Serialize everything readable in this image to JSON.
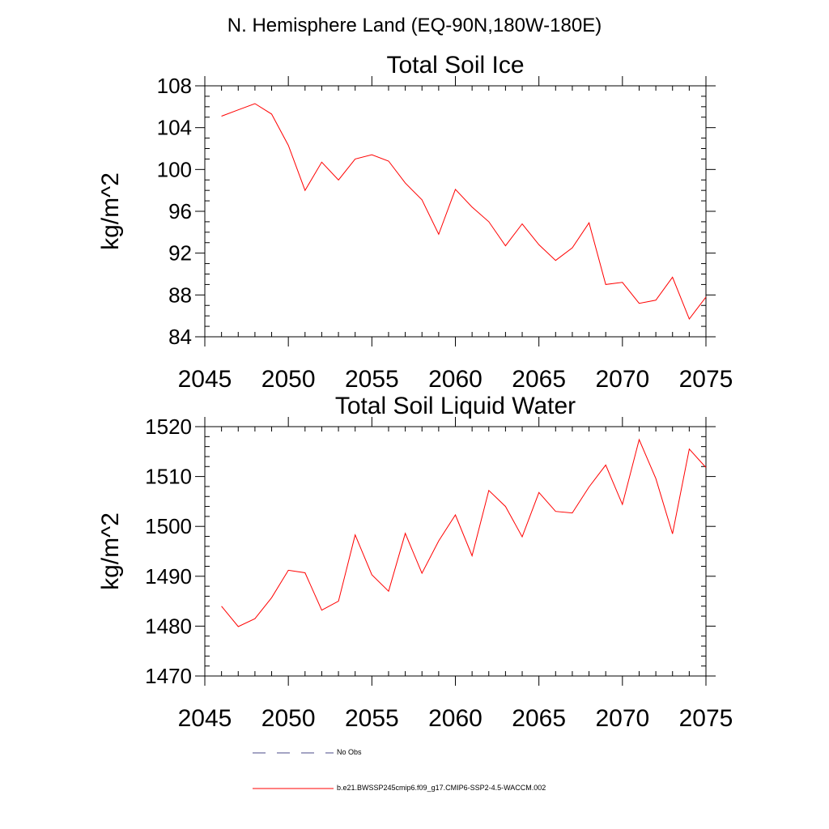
{
  "figure_title": "N. Hemisphere Land (EQ-90N,180W-180E)",
  "legend": [
    {
      "label": "No Obs",
      "color": "#4a4a8a",
      "style": "dashed"
    },
    {
      "label": "b.e21.BWSSP245cmip6.f09_g17.CMIP6-SSP2-4.5-WACCM.002",
      "color": "#ff0000",
      "style": "solid"
    }
  ],
  "chart_data": [
    {
      "type": "line",
      "title": "Total Soil Ice",
      "xlabel": "",
      "ylabel": "kg/m^2",
      "xlim": [
        2045,
        2075
      ],
      "ylim": [
        84,
        108
      ],
      "xticks": [
        2045,
        2050,
        2055,
        2060,
        2065,
        2070,
        2075
      ],
      "yticks": [
        84,
        88,
        92,
        96,
        100,
        104,
        108
      ],
      "y_minor_step": 1,
      "x_minor_step": 1,
      "grid": false,
      "series": [
        {
          "color": "#ff0000",
          "x": [
            2046,
            2047,
            2048,
            2049,
            2050,
            2051,
            2052,
            2053,
            2054,
            2055,
            2056,
            2057,
            2058,
            2059,
            2060,
            2061,
            2062,
            2063,
            2064,
            2065,
            2066,
            2067,
            2068,
            2069,
            2070,
            2071,
            2072,
            2073,
            2074,
            2075
          ],
          "y": [
            105.1,
            105.7,
            106.3,
            105.3,
            102.3,
            98.0,
            100.7,
            99.0,
            101.0,
            101.4,
            100.8,
            98.7,
            97.1,
            93.8,
            98.1,
            96.4,
            95.0,
            92.7,
            94.8,
            92.8,
            91.3,
            92.5,
            94.9,
            89.0,
            89.2,
            87.2,
            87.5,
            89.7,
            85.7,
            87.8
          ]
        }
      ]
    },
    {
      "type": "line",
      "title": "Total Soil Liquid Water",
      "xlabel": "",
      "ylabel": "kg/m^2",
      "xlim": [
        2045,
        2075
      ],
      "ylim": [
        1470,
        1520
      ],
      "xticks": [
        2045,
        2050,
        2055,
        2060,
        2065,
        2070,
        2075
      ],
      "yticks": [
        1470,
        1480,
        1490,
        1500,
        1510,
        1520
      ],
      "y_minor_step": 2,
      "x_minor_step": 1,
      "grid": false,
      "series": [
        {
          "color": "#ff0000",
          "x": [
            2046,
            2047,
            2048,
            2049,
            2050,
            2051,
            2052,
            2053,
            2054,
            2055,
            2056,
            2057,
            2058,
            2059,
            2060,
            2061,
            2062,
            2063,
            2064,
            2065,
            2066,
            2067,
            2068,
            2069,
            2070,
            2071,
            2072,
            2073,
            2074,
            2075
          ],
          "y": [
            1484.0,
            1479.9,
            1481.5,
            1485.7,
            1491.2,
            1490.7,
            1483.2,
            1485.0,
            1498.3,
            1490.3,
            1487.0,
            1498.6,
            1490.6,
            1497.1,
            1502.3,
            1494.1,
            1507.2,
            1504.0,
            1497.9,
            1506.8,
            1503.0,
            1502.7,
            1507.9,
            1512.3,
            1504.4,
            1517.4,
            1509.6,
            1498.5,
            1515.5,
            1511.8
          ]
        }
      ]
    }
  ]
}
